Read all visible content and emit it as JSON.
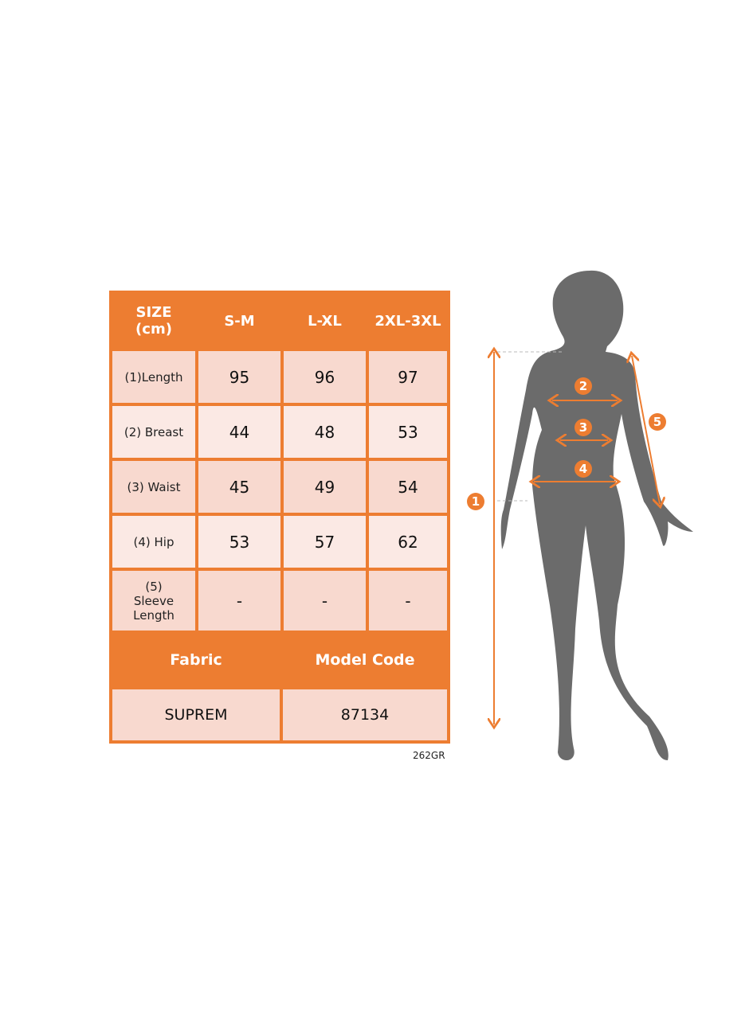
{
  "table": {
    "header": [
      "SIZE\n(cm)",
      "S-M",
      "L-XL",
      "2XL-3XL"
    ],
    "header_size": "SIZE",
    "header_unit": "(cm)",
    "rows": [
      {
        "label": "(1)Length",
        "values": [
          "95",
          "96",
          "97"
        ]
      },
      {
        "label": "(2) Breast",
        "values": [
          "44",
          "48",
          "53"
        ]
      },
      {
        "label": "(3) Waist",
        "values": [
          "45",
          "49",
          "54"
        ]
      },
      {
        "label": "(4) Hip",
        "values": [
          "53",
          "57",
          "62"
        ]
      },
      {
        "label": "(5) Sleeve Length",
        "values": [
          "-",
          "-",
          "-"
        ]
      }
    ],
    "fabric_label": "Fabric",
    "model_code_label": "Model Code",
    "fabric_value": "SUPREM",
    "model_code_value": "87134"
  },
  "product_code": "262GR",
  "figure": {
    "markers": [
      "1",
      "2",
      "3",
      "4",
      "5"
    ]
  },
  "colors": {
    "accent": "#ed7d31",
    "row_dark": "#f8d9cf",
    "row_light": "#fbe9e4",
    "silhouette": "#6b6b6b"
  }
}
